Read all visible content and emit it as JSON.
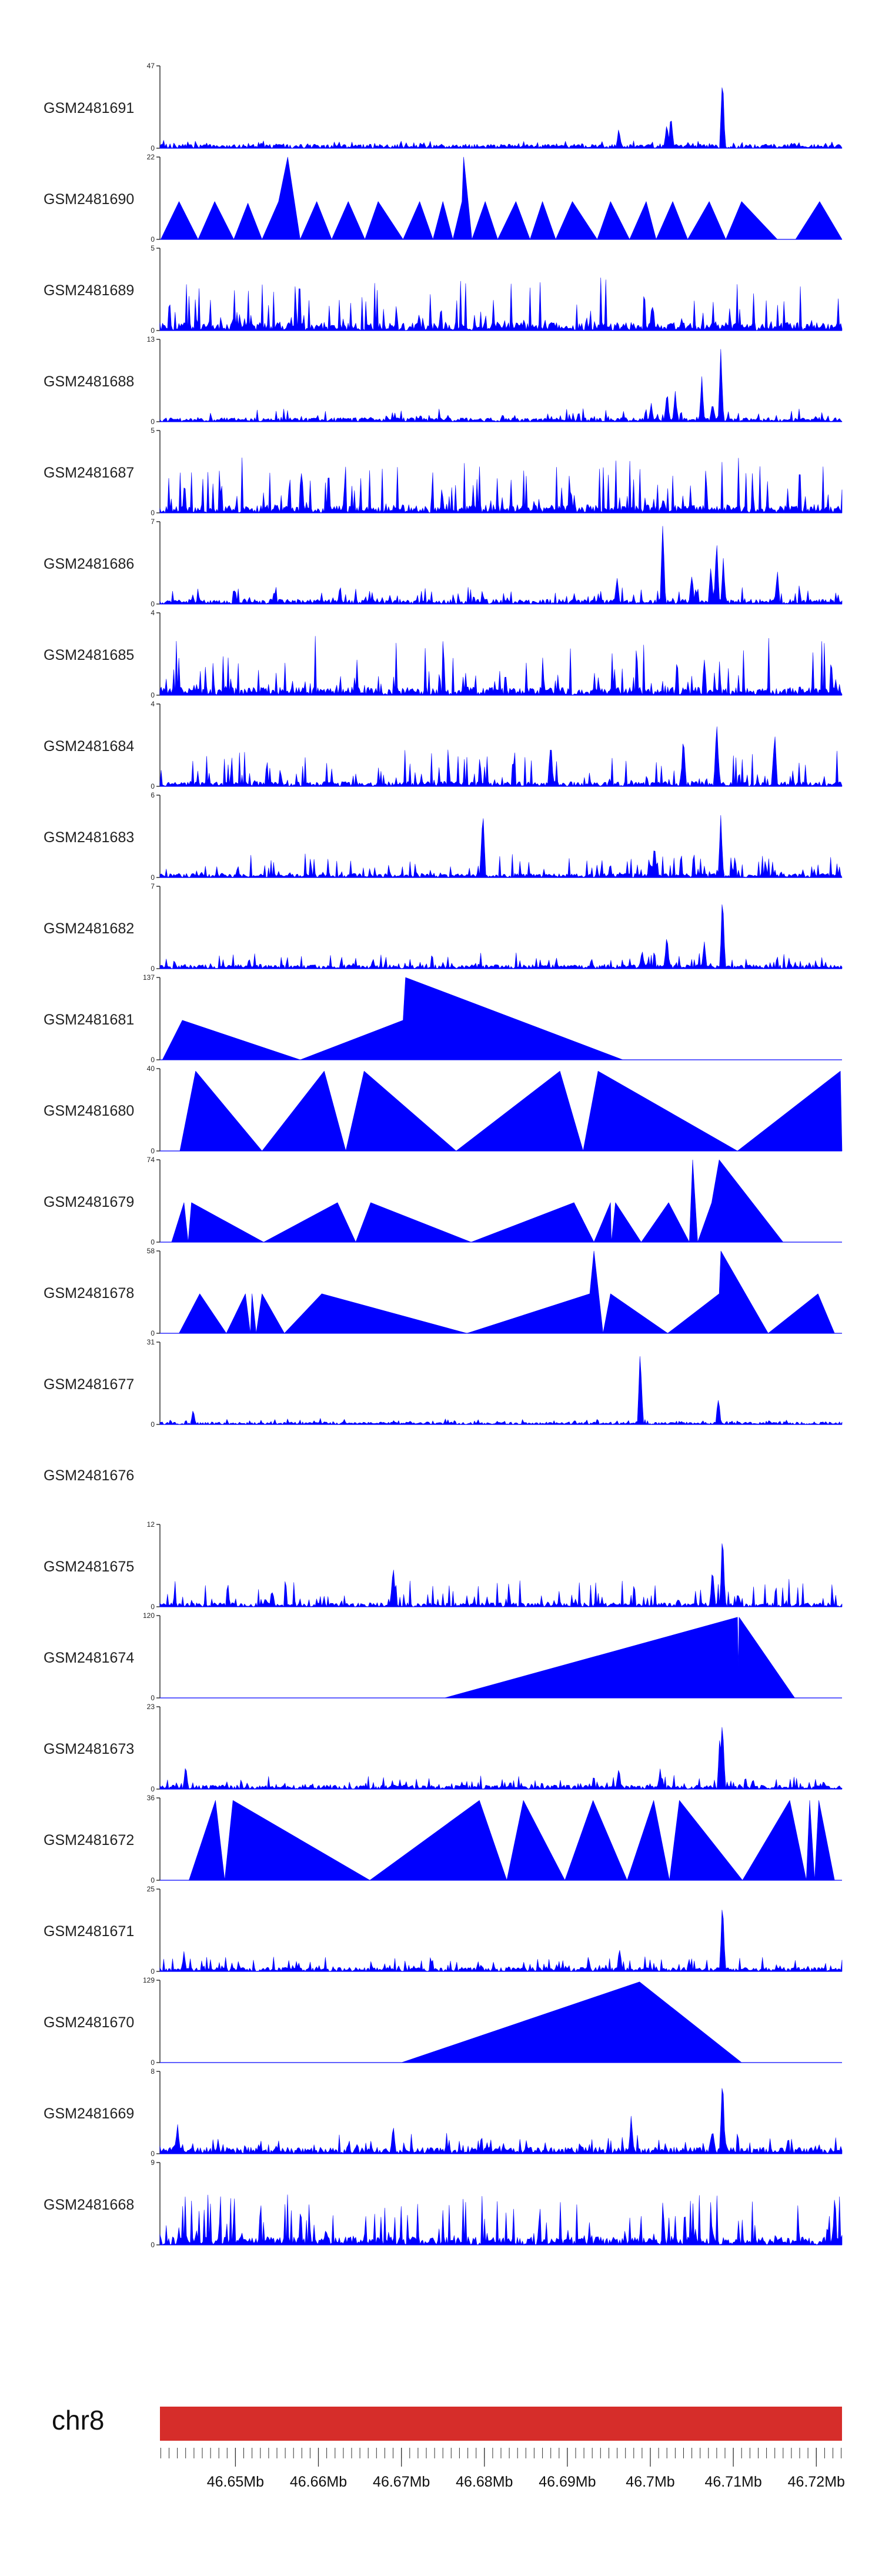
{
  "colors": {
    "signal": "#0000ff",
    "ideogram": "#d62d2a",
    "axis": "#333333"
  },
  "chart_data": {
    "type": "area",
    "x_units": "Mb",
    "xlim": [
      46.6409,
      46.7231
    ],
    "tracks": [
      {
        "name": "GSM2481691",
        "ymax": 47,
        "ymin_label": "0",
        "style": "dense",
        "seed": 11,
        "noise": 0.05,
        "spike": 0.06,
        "peaks": [
          [
            46.7087,
            1.0
          ],
          [
            46.7025,
            0.5
          ],
          [
            46.702,
            0.35
          ],
          [
            46.6962,
            0.26
          ],
          [
            46.717,
            0.08
          ]
        ]
      },
      {
        "name": "GSM2481690",
        "ymax": 22,
        "ymin_label": "0",
        "style": "sparse",
        "seed": 12,
        "vertices": [
          [
            46.641,
            0.0
          ],
          [
            46.6432,
            0.46
          ],
          [
            46.6455,
            0.0
          ],
          [
            46.6475,
            0.46
          ],
          [
            46.6498,
            0.0
          ],
          [
            46.6515,
            0.44
          ],
          [
            46.6532,
            0.0
          ],
          [
            46.6552,
            0.46
          ],
          [
            46.6563,
            1.0
          ],
          [
            46.6578,
            0.0
          ],
          [
            46.6598,
            0.46
          ],
          [
            46.6616,
            0.0
          ],
          [
            46.6636,
            0.46
          ],
          [
            46.6656,
            0.0
          ],
          [
            46.6672,
            0.46
          ],
          [
            46.6702,
            0.0
          ],
          [
            46.6722,
            0.46
          ],
          [
            46.6738,
            0.0
          ],
          [
            46.675,
            0.46
          ],
          [
            46.6762,
            0.0
          ],
          [
            46.6773,
            0.46
          ],
          [
            46.6775,
            1.0
          ],
          [
            46.6785,
            0.0
          ],
          [
            46.6801,
            0.46
          ],
          [
            46.6816,
            0.0
          ],
          [
            46.6838,
            0.46
          ],
          [
            46.6855,
            0.0
          ],
          [
            46.687,
            0.46
          ],
          [
            46.6886,
            0.0
          ],
          [
            46.6906,
            0.46
          ],
          [
            46.6936,
            0.0
          ],
          [
            46.6952,
            0.46
          ],
          [
            46.6975,
            0.0
          ],
          [
            46.6995,
            0.46
          ],
          [
            46.7007,
            0.0
          ],
          [
            46.7027,
            0.46
          ],
          [
            46.7045,
            0.0
          ],
          [
            46.7071,
            0.46
          ],
          [
            46.7091,
            0.0
          ],
          [
            46.711,
            0.46
          ],
          [
            46.7153,
            0.0
          ],
          [
            46.7175,
            0.0
          ],
          [
            46.7204,
            0.46
          ],
          [
            46.7231,
            0.0
          ]
        ]
      },
      {
        "name": "GSM2481689",
        "ymax": 5,
        "ymin_label": "0",
        "style": "dense",
        "seed": 13,
        "noise": 0.1,
        "spike": 0.6,
        "peaks": []
      },
      {
        "name": "GSM2481688",
        "ymax": 13,
        "ymin_label": "0",
        "style": "dense",
        "seed": 14,
        "noise": 0.05,
        "spike": 0.12,
        "peaks": [
          [
            46.7085,
            1.0
          ],
          [
            46.7062,
            0.6
          ],
          [
            46.702,
            0.45
          ],
          [
            46.703,
            0.38
          ],
          [
            46.7075,
            0.3
          ],
          [
            46.7001,
            0.25
          ]
        ]
      },
      {
        "name": "GSM2481687",
        "ymax": 5,
        "ymin_label": "0",
        "style": "dense",
        "seed": 15,
        "noise": 0.1,
        "spike": 0.58,
        "peaks": []
      },
      {
        "name": "GSM2481686",
        "ymax": 7,
        "ymin_label": "0",
        "style": "dense",
        "seed": 16,
        "noise": 0.06,
        "spike": 0.18,
        "peaks": [
          [
            46.7015,
            1.0
          ],
          [
            46.708,
            0.8
          ],
          [
            46.7088,
            0.62
          ],
          [
            46.7073,
            0.55
          ],
          [
            46.7153,
            0.44
          ],
          [
            46.705,
            0.4
          ],
          [
            46.696,
            0.35
          ]
        ]
      },
      {
        "name": "GSM2481685",
        "ymax": 4,
        "ymin_label": "0",
        "style": "dense",
        "seed": 17,
        "noise": 0.1,
        "spike": 0.65,
        "peaks": []
      },
      {
        "name": "GSM2481684",
        "ymax": 4,
        "ymin_label": "0",
        "style": "dense",
        "seed": 18,
        "noise": 0.06,
        "spike": 0.4,
        "peaks": [
          [
            46.708,
            0.95
          ],
          [
            46.704,
            0.75
          ],
          [
            46.688,
            0.7
          ],
          [
            46.715,
            0.72
          ]
        ]
      },
      {
        "name": "GSM2481683",
        "ymax": 6,
        "ymin_label": "0",
        "style": "dense",
        "seed": 19,
        "noise": 0.05,
        "spike": 0.26,
        "peaks": [
          [
            46.6798,
            0.98
          ],
          [
            46.7085,
            0.82
          ],
          [
            46.7005,
            0.5
          ]
        ]
      },
      {
        "name": "GSM2481682",
        "ymax": 7,
        "ymin_label": "0",
        "style": "dense",
        "seed": 20,
        "noise": 0.05,
        "spike": 0.16,
        "peaks": [
          [
            46.7087,
            1.0
          ],
          [
            46.702,
            0.45
          ],
          [
            46.7065,
            0.38
          ],
          [
            46.699,
            0.26
          ]
        ]
      },
      {
        "name": "GSM2481681",
        "ymax": 137,
        "ymin_label": "0",
        "style": "sparse",
        "seed": 21,
        "vertices": [
          [
            46.6412,
            0.0
          ],
          [
            46.6436,
            0.48
          ],
          [
            46.6578,
            0.0
          ],
          [
            46.6702,
            0.48
          ],
          [
            46.6705,
            1.0
          ],
          [
            46.6967,
            0.0
          ]
        ]
      },
      {
        "name": "GSM2481680",
        "ymax": 40,
        "ymin_label": "0",
        "style": "sparse",
        "seed": 22,
        "vertices": [
          [
            46.6433,
            0.0
          ],
          [
            46.6452,
            0.97
          ],
          [
            46.6532,
            0.0
          ],
          [
            46.6607,
            0.97
          ],
          [
            46.6633,
            0.0
          ],
          [
            46.6655,
            0.97
          ],
          [
            46.6766,
            0.0
          ],
          [
            46.6891,
            0.97
          ],
          [
            46.6919,
            0.0
          ],
          [
            46.6937,
            0.97
          ],
          [
            46.7105,
            0.0
          ],
          [
            46.7229,
            0.97
          ],
          [
            46.7231,
            0.0
          ]
        ]
      },
      {
        "name": "GSM2481679",
        "ymax": 74,
        "ymin_label": "0",
        "style": "sparse",
        "seed": 23,
        "vertices": [
          [
            46.6423,
            0.0
          ],
          [
            46.6438,
            0.48
          ],
          [
            46.6443,
            0.0
          ],
          [
            46.6447,
            0.48
          ],
          [
            46.6534,
            0.0
          ],
          [
            46.6623,
            0.48
          ],
          [
            46.6645,
            0.0
          ],
          [
            46.6663,
            0.48
          ],
          [
            46.6784,
            0.0
          ],
          [
            46.6908,
            0.48
          ],
          [
            46.6932,
            0.0
          ],
          [
            46.6952,
            0.48
          ],
          [
            46.6953,
            0.0
          ],
          [
            46.6958,
            0.48
          ],
          [
            46.6989,
            0.0
          ],
          [
            46.7022,
            0.48
          ],
          [
            46.7047,
            0.0
          ],
          [
            46.7051,
            1.0
          ],
          [
            46.7057,
            0.0
          ],
          [
            46.7074,
            0.48
          ],
          [
            46.7083,
            1.0
          ],
          [
            46.716,
            0.0
          ]
        ]
      },
      {
        "name": "GSM2481678",
        "ymax": 58,
        "ymin_label": "0",
        "style": "sparse",
        "seed": 24,
        "vertices": [
          [
            46.6432,
            0.0
          ],
          [
            46.6457,
            0.48
          ],
          [
            46.6489,
            0.0
          ],
          [
            46.6512,
            0.48
          ],
          [
            46.6518,
            0.0
          ],
          [
            46.652,
            0.48
          ],
          [
            46.6525,
            0.0
          ],
          [
            46.6532,
            0.48
          ],
          [
            46.6559,
            0.0
          ],
          [
            46.6604,
            0.48
          ],
          [
            46.6779,
            0.0
          ],
          [
            46.6927,
            0.48
          ],
          [
            46.6932,
            1.0
          ],
          [
            46.6943,
            0.0
          ],
          [
            46.6952,
            0.48
          ],
          [
            46.7021,
            0.0
          ],
          [
            46.7083,
            0.48
          ],
          [
            46.7085,
            1.0
          ],
          [
            46.7142,
            0.0
          ],
          [
            46.7202,
            0.48
          ],
          [
            46.7222,
            0.0
          ]
        ]
      },
      {
        "name": "GSM2481677",
        "ymax": 31,
        "ymin_label": "0",
        "style": "dense",
        "seed": 25,
        "noise": 0.03,
        "spike": 0.05,
        "peaks": [
          [
            46.6988,
            1.0
          ],
          [
            46.7082,
            0.38
          ],
          [
            46.6449,
            0.2
          ]
        ]
      },
      {
        "name": "GSM2481676",
        "ymax": null,
        "ymin_label": "",
        "style": "empty",
        "seed": 26
      },
      {
        "name": "GSM2481675",
        "ymax": 12,
        "ymin_label": "0",
        "style": "dense",
        "seed": 27,
        "noise": 0.05,
        "spike": 0.3,
        "peaks": [
          [
            46.7087,
            1.0
          ],
          [
            46.7075,
            0.55
          ],
          [
            46.669,
            0.55
          ]
        ]
      },
      {
        "name": "GSM2481674",
        "ymax": 120,
        "ymin_label": "0",
        "style": "sparse",
        "seed": 28,
        "vertices": [
          [
            46.6752,
            0.0
          ],
          [
            46.7105,
            0.98
          ],
          [
            46.7106,
            0.38
          ],
          [
            46.7107,
            0.98
          ],
          [
            46.7174,
            0.0
          ]
        ]
      },
      {
        "name": "GSM2481673",
        "ymax": 23,
        "ymin_label": "0",
        "style": "dense",
        "seed": 29,
        "noise": 0.05,
        "spike": 0.12,
        "peaks": [
          [
            46.7087,
            1.0
          ],
          [
            46.7084,
            0.8
          ],
          [
            46.644,
            0.32
          ],
          [
            46.6962,
            0.28
          ],
          [
            46.7012,
            0.28
          ]
        ]
      },
      {
        "name": "GSM2481672",
        "ymax": 36,
        "ymin_label": "0",
        "style": "sparse",
        "seed": 30,
        "vertices": [
          [
            46.6444,
            0.0
          ],
          [
            46.6476,
            0.97
          ],
          [
            46.6487,
            0.0
          ],
          [
            46.6497,
            0.97
          ],
          [
            46.6662,
            0.0
          ],
          [
            46.6794,
            0.97
          ],
          [
            46.6827,
            0.0
          ],
          [
            46.6847,
            0.97
          ],
          [
            46.6897,
            0.0
          ],
          [
            46.6931,
            0.97
          ],
          [
            46.6972,
            0.0
          ],
          [
            46.7004,
            0.97
          ],
          [
            46.7023,
            0.0
          ],
          [
            46.7035,
            0.97
          ],
          [
            46.7111,
            0.0
          ],
          [
            46.7168,
            0.97
          ],
          [
            46.7188,
            0.0
          ],
          [
            46.7192,
            0.97
          ],
          [
            46.7198,
            0.0
          ],
          [
            46.7203,
            0.97
          ],
          [
            46.7222,
            0.0
          ]
        ]
      },
      {
        "name": "GSM2481671",
        "ymax": 25,
        "ymin_label": "0",
        "style": "dense",
        "seed": 31,
        "noise": 0.05,
        "spike": 0.14,
        "peaks": [
          [
            46.7087,
            1.0
          ],
          [
            46.6963,
            0.35
          ],
          [
            46.6438,
            0.28
          ]
        ]
      },
      {
        "name": "GSM2481670",
        "ymax": 129,
        "ymin_label": "0",
        "style": "sparse",
        "seed": 32,
        "vertices": [
          [
            46.67,
            0.0
          ],
          [
            46.6987,
            0.98
          ],
          [
            46.711,
            0.0
          ]
        ]
      },
      {
        "name": "GSM2481669",
        "ymax": 8,
        "ymin_label": "0",
        "style": "dense",
        "seed": 33,
        "noise": 0.08,
        "spike": 0.18,
        "peaks": [
          [
            46.7087,
            1.0
          ],
          [
            46.6977,
            0.55
          ],
          [
            46.643,
            0.42
          ],
          [
            46.669,
            0.38
          ],
          [
            46.7075,
            0.4
          ]
        ]
      },
      {
        "name": "GSM2481668",
        "ymax": 9,
        "ymin_label": "0",
        "style": "dense",
        "seed": 34,
        "noise": 0.1,
        "spike": 0.55,
        "peaks": []
      }
    ],
    "ideogram": {
      "chromosome": "chr8",
      "ticks": [
        "46.65Mb",
        "46.66Mb",
        "46.67Mb",
        "46.68Mb",
        "46.69Mb",
        "46.7Mb",
        "46.71Mb",
        "46.72Mb"
      ],
      "tick_values": [
        46.65,
        46.66,
        46.67,
        46.68,
        46.69,
        46.7,
        46.71,
        46.72
      ],
      "minor_step": 0.001
    }
  }
}
